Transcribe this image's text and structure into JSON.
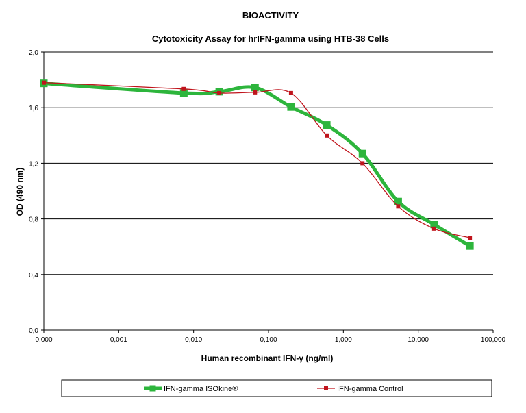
{
  "chart_data": {
    "type": "line",
    "title": "BIOACTIVITY",
    "subtitle": "Cytotoxicity Assay for hrIFN-gamma using HTB-38 Cells",
    "xlabel": "Human recombinant IFN-γ (ng/ml)",
    "ylabel": "OD (490 nm)",
    "x_scale": "log",
    "x_ticks": [
      "0,000",
      "0,001",
      "0,010",
      "0,100",
      "1,000",
      "10,000",
      "100,000"
    ],
    "y_ticks": [
      "0,0",
      "0,4",
      "0,8",
      "1,2",
      "1,6",
      "2,0"
    ],
    "ylim": [
      0,
      2.0
    ],
    "grid": "horizontal",
    "legend": "bottom",
    "series": [
      {
        "name": "IFN-gamma ISOkine®",
        "color": "#2db53c",
        "x": [
          0.0001,
          0.0074,
          0.022,
          0.066,
          0.2,
          0.6,
          1.8,
          5.4,
          16.3,
          49
        ],
        "values": [
          1.775,
          1.705,
          1.715,
          1.745,
          1.605,
          1.475,
          1.27,
          0.925,
          0.76,
          0.605
        ]
      },
      {
        "name": "IFN-gamma Control",
        "color": "#c0141c",
        "x": [
          0.0001,
          0.0074,
          0.022,
          0.066,
          0.2,
          0.6,
          1.8,
          5.4,
          16.3,
          49
        ],
        "values": [
          1.78,
          1.735,
          1.705,
          1.71,
          1.705,
          1.4,
          1.2,
          0.89,
          0.73,
          0.665
        ]
      }
    ]
  }
}
